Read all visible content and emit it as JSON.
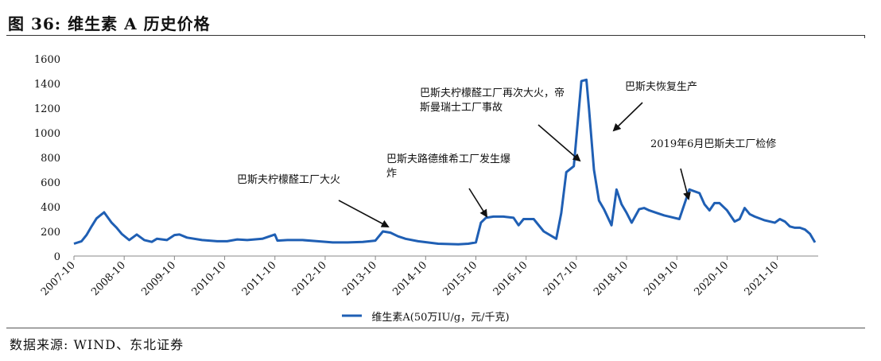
{
  "header": {
    "title": "图 36:  维生素 A 历史价格"
  },
  "footer": {
    "source": "数据来源:  WIND、东北证券"
  },
  "chart_data": {
    "type": "line",
    "title": "图 36:  维生素 A 历史价格",
    "xlabel": "",
    "ylabel": "",
    "ylim": [
      0,
      1600
    ],
    "yticks": [
      "0",
      "200",
      "400",
      "600",
      "800",
      "1000",
      "1200",
      "1400",
      "1600"
    ],
    "xlim": [
      2007.75,
      2022.5
    ],
    "xticks": [
      "2007-10",
      "2008-10",
      "2009-10",
      "2010-10",
      "2011-10",
      "2012-10",
      "2013-10",
      "2014-10",
      "2015-10",
      "2016-10",
      "2017-10",
      "2018-10",
      "2019-10",
      "2020-10",
      "2021-10"
    ],
    "grid": false,
    "legend": "bottom-center",
    "series": [
      {
        "name": "维生素A(50万IU/g，元/千克)",
        "color": "#1f5fb4",
        "x": [
          2007.75,
          2007.9,
          2008.0,
          2008.1,
          2008.2,
          2008.35,
          2008.5,
          2008.6,
          2008.7,
          2008.85,
          2009.0,
          2009.15,
          2009.3,
          2009.4,
          2009.6,
          2009.75,
          2009.85,
          2010.0,
          2010.3,
          2010.6,
          2010.8,
          2011.0,
          2011.2,
          2011.5,
          2011.75,
          2011.8,
          2012.0,
          2012.3,
          2012.6,
          2012.9,
          2013.2,
          2013.5,
          2013.75,
          2013.9,
          2014.05,
          2014.2,
          2014.35,
          2014.6,
          2015.0,
          2015.4,
          2015.6,
          2015.75,
          2015.85,
          2015.95,
          2016.1,
          2016.3,
          2016.5,
          2016.6,
          2016.7,
          2016.9,
          2017.1,
          2017.35,
          2017.45,
          2017.55,
          2017.7,
          2017.85,
          2017.95,
          2018.0,
          2018.1,
          2018.2,
          2018.3,
          2018.45,
          2018.55,
          2018.65,
          2018.75,
          2018.85,
          2019.0,
          2019.1,
          2019.2,
          2019.35,
          2019.5,
          2019.6,
          2019.8,
          2020.0,
          2020.2,
          2020.3,
          2020.4,
          2020.5,
          2020.6,
          2020.75,
          2020.9,
          2021.0,
          2021.1,
          2021.2,
          2021.3,
          2021.5,
          2021.7,
          2021.8,
          2021.9,
          2022.0,
          2022.1,
          2022.2,
          2022.3,
          2022.4,
          2022.5
        ],
        "y": [
          100,
          120,
          170,
          240,
          305,
          355,
          270,
          230,
          180,
          130,
          175,
          130,
          115,
          140,
          130,
          170,
          175,
          150,
          130,
          120,
          120,
          135,
          130,
          140,
          175,
          125,
          130,
          130,
          120,
          110,
          110,
          115,
          125,
          200,
          190,
          160,
          140,
          120,
          100,
          95,
          100,
          110,
          270,
          310,
          320,
          320,
          310,
          250,
          300,
          300,
          200,
          140,
          350,
          680,
          730,
          1420,
          1430,
          1200,
          700,
          450,
          380,
          250,
          540,
          420,
          350,
          270,
          380,
          390,
          370,
          350,
          330,
          320,
          300,
          540,
          510,
          420,
          370,
          430,
          430,
          370,
          280,
          300,
          390,
          340,
          320,
          290,
          270,
          300,
          280,
          240,
          230,
          230,
          215,
          180,
          110
        ]
      }
    ],
    "annotations": [
      {
        "text": "巴斯夫柠檬醛工厂大火",
        "lines": [
          "巴斯夫柠檬醛工厂大火"
        ]
      },
      {
        "text": "巴斯夫路德维希工厂发生爆炸",
        "lines": [
          "巴斯夫路德维希工厂发生爆",
          "炸"
        ]
      },
      {
        "text": "巴斯夫柠檬醛工厂再次大火，帝斯曼瑞士工厂事故",
        "lines": [
          "巴斯夫柠檬醛工厂再次大火，帝",
          "斯曼瑞士工厂事故"
        ]
      },
      {
        "text": "巴斯夫恢复生产",
        "lines": [
          "巴斯夫恢复生产"
        ]
      },
      {
        "text": "2019年6月巴斯夫工厂检修",
        "lines": [
          "2019年6月巴斯夫工厂检修"
        ]
      }
    ]
  }
}
